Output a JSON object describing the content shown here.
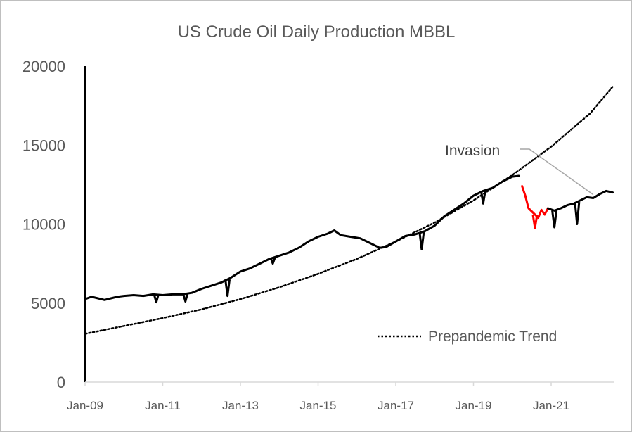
{
  "chart_data": {
    "type": "line",
    "title": "US Crude Oil Daily Production MBBL",
    "xlabel": "",
    "ylabel": "",
    "ylim": [
      0,
      20000
    ],
    "xlim": [
      "2009-01",
      "2022-08"
    ],
    "y_ticks": [
      0,
      5000,
      10000,
      15000,
      20000
    ],
    "y_tick_labels": [
      "0",
      "5000",
      "10000",
      "15000",
      "20000"
    ],
    "x_ticks": [
      "2009-01",
      "2011-01",
      "2013-01",
      "2015-01",
      "2017-01",
      "2019-01",
      "2021-01"
    ],
    "x_tick_labels": [
      "Jan-09",
      "Jan-11",
      "Jan-13",
      "Jan-15",
      "Jan-17",
      "Jan-19",
      "Jan-21"
    ],
    "grid": false,
    "legend": {
      "position": "bottom-right",
      "entries": [
        "Prepandemic Trend"
      ]
    },
    "annotations": [
      {
        "text": "Invasion",
        "points_to": [
          "2022-02",
          11600
        ]
      }
    ],
    "colors": {
      "production": "#000000",
      "pandemic": "#ff0000",
      "trend": "#000000"
    },
    "series": [
      {
        "color": "#000000",
        "style": "solid",
        "points": [
          [
            "2009-01",
            5250
          ],
          [
            "2009-03",
            5400
          ],
          [
            "2009-05",
            5300
          ],
          [
            "2009-07",
            5200
          ],
          [
            "2009-09",
            5300
          ],
          [
            "2009-11",
            5400
          ],
          [
            "2010-01",
            5450
          ],
          [
            "2010-04",
            5500
          ],
          [
            "2010-07",
            5450
          ],
          [
            "2010-10",
            5550
          ],
          [
            "2011-01",
            5500
          ],
          [
            "2011-04",
            5550
          ],
          [
            "2011-07",
            5550
          ],
          [
            "2011-10",
            5650
          ],
          [
            "2012-01",
            5900
          ],
          [
            "2012-04",
            6100
          ],
          [
            "2012-07",
            6300
          ],
          [
            "2012-10",
            6600
          ],
          [
            "2013-01",
            7000
          ],
          [
            "2013-04",
            7200
          ],
          [
            "2013-07",
            7500
          ],
          [
            "2013-10",
            7800
          ],
          [
            "2014-01",
            8000
          ],
          [
            "2014-04",
            8200
          ],
          [
            "2014-07",
            8500
          ],
          [
            "2014-10",
            8900
          ],
          [
            "2015-01",
            9200
          ],
          [
            "2015-04",
            9400
          ],
          [
            "2015-06",
            9600
          ],
          [
            "2015-08",
            9300
          ],
          [
            "2015-11",
            9200
          ],
          [
            "2016-02",
            9100
          ],
          [
            "2016-05",
            8800
          ],
          [
            "2016-08",
            8500
          ],
          [
            "2016-10",
            8550
          ],
          [
            "2017-01",
            8900
          ],
          [
            "2017-04",
            9250
          ],
          [
            "2017-07",
            9350
          ],
          [
            "2017-10",
            9550
          ],
          [
            "2018-01",
            9900
          ],
          [
            "2018-04",
            10500
          ],
          [
            "2018-07",
            10900
          ],
          [
            "2018-10",
            11300
          ],
          [
            "2019-01",
            11800
          ],
          [
            "2019-04",
            12100
          ],
          [
            "2019-07",
            12300
          ],
          [
            "2019-10",
            12700
          ],
          [
            "2020-01",
            13000
          ],
          [
            "2020-03",
            13050
          ]
        ]
      },
      {
        "color": "#ff0000",
        "style": "solid",
        "points": [
          [
            "2020-04",
            12400
          ],
          [
            "2020-05",
            11800
          ],
          [
            "2020-06",
            11000
          ],
          [
            "2020-07",
            10800
          ],
          [
            "2020-08",
            10600
          ],
          [
            "2020-09",
            10400
          ],
          [
            "2020-10",
            10900
          ],
          [
            "2020-11",
            10600
          ],
          [
            "2020-12",
            11000
          ]
        ]
      },
      {
        "color": "#000000",
        "style": "solid",
        "points": [
          [
            "2020-12",
            11000
          ],
          [
            "2021-02",
            10850
          ],
          [
            "2021-04",
            11000
          ],
          [
            "2021-06",
            11200
          ],
          [
            "2021-08",
            11300
          ],
          [
            "2021-10",
            11500
          ],
          [
            "2021-12",
            11700
          ],
          [
            "2022-02",
            11650
          ],
          [
            "2022-04",
            11900
          ],
          [
            "2022-06",
            12100
          ],
          [
            "2022-08",
            12000
          ]
        ]
      },
      {
        "name": "Prepandemic Trend",
        "color": "#000000",
        "style": "dotted",
        "points": [
          [
            "2009-01",
            3050
          ],
          [
            "2010-01",
            3550
          ],
          [
            "2011-01",
            4050
          ],
          [
            "2012-01",
            4600
          ],
          [
            "2013-01",
            5250
          ],
          [
            "2014-01",
            6000
          ],
          [
            "2015-01",
            6850
          ],
          [
            "2016-01",
            7800
          ],
          [
            "2017-01",
            8900
          ],
          [
            "2018-01",
            10100
          ],
          [
            "2019-01",
            11500
          ],
          [
            "2020-01",
            13100
          ],
          [
            "2021-01",
            14900
          ],
          [
            "2022-01",
            17000
          ],
          [
            "2022-08",
            18700
          ]
        ]
      }
    ],
    "dips": [
      [
        "2010-11",
        5050
      ],
      [
        "2011-08",
        5100
      ],
      [
        "2012-09",
        5450
      ],
      [
        "2013-11",
        7500
      ],
      [
        "2017-09",
        8400
      ],
      [
        "2019-04",
        11300
      ],
      [
        "2020-08",
        9750
      ],
      [
        "2021-02",
        9800
      ],
      [
        "2021-09",
        10000
      ]
    ]
  }
}
